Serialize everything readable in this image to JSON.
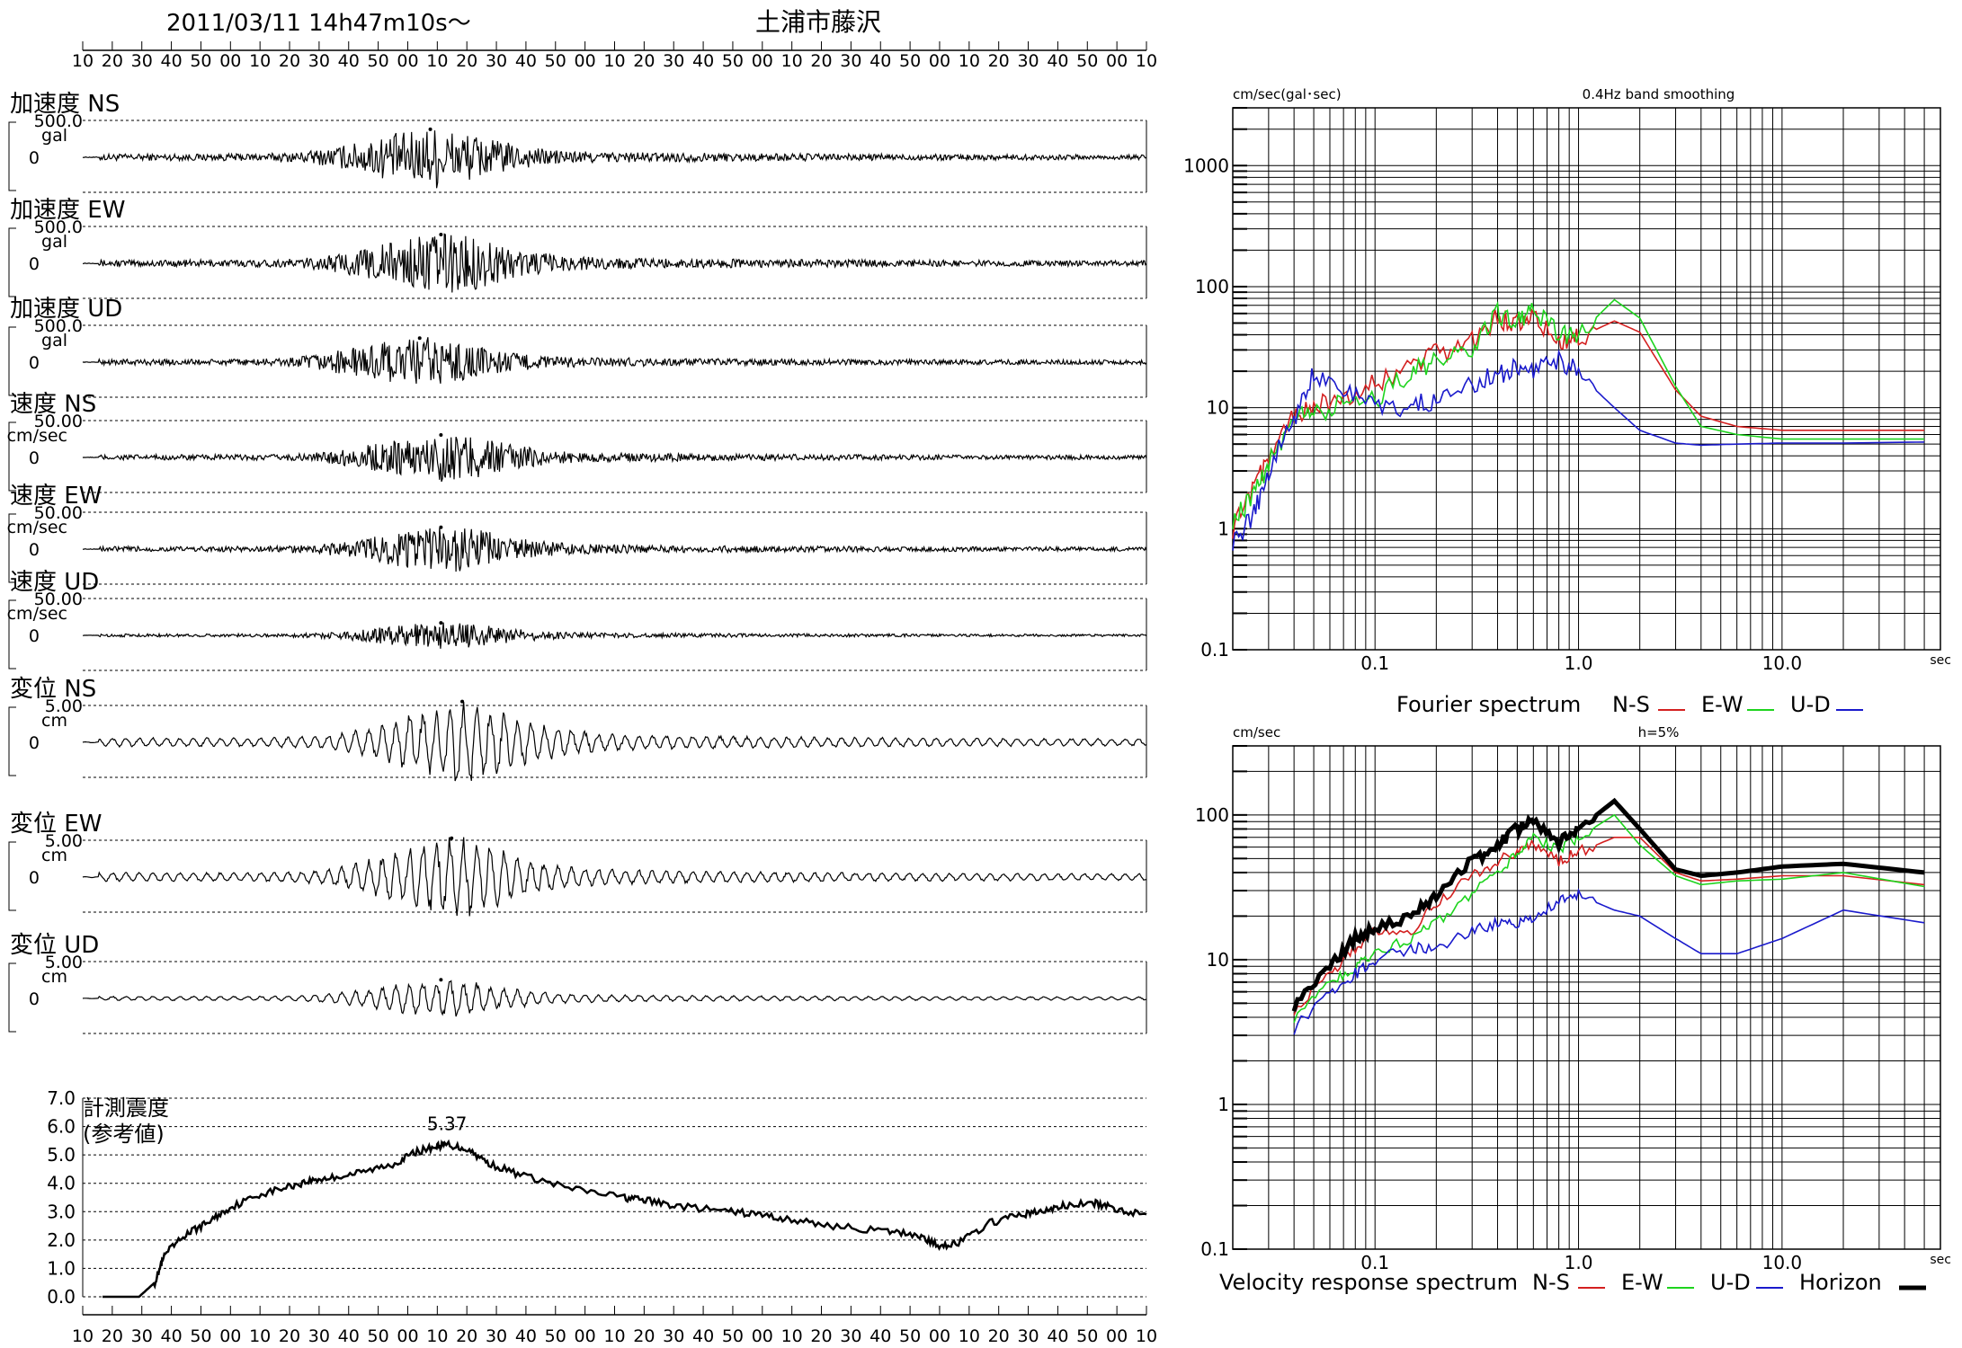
{
  "header": {
    "datetime": "2011/03/11  14h47m10s～",
    "station": "土浦市藤沢"
  },
  "time_ticks": [
    "10",
    "20",
    "30",
    "40",
    "50",
    "00",
    "10",
    "20",
    "30",
    "40",
    "50",
    "00",
    "10",
    "20",
    "30",
    "40",
    "50",
    "00",
    "10",
    "20",
    "30",
    "40",
    "50",
    "00",
    "10",
    "20",
    "30",
    "40",
    "50",
    "00",
    "10",
    "20",
    "30",
    "40",
    "50",
    "00",
    "10"
  ],
  "colors": {
    "ns": "#d42020",
    "ew": "#1ed41e",
    "ud": "#1a1acc",
    "horizon": "#000000",
    "trace": "#000000",
    "grid": "#000000"
  },
  "chart_data": [
    {
      "type": "line",
      "title": "加速度 NS",
      "unit": "gal",
      "scale_label": "500.0",
      "zero_label": "0",
      "ylim": [
        -500,
        500
      ],
      "peak_time_index": 0.32,
      "amplitude": 0.72
    },
    {
      "type": "line",
      "title": "加速度 EW",
      "unit": "gal",
      "scale_label": "500.0",
      "zero_label": "0",
      "ylim": [
        -500,
        500
      ],
      "peak_time_index": 0.33,
      "amplitude": 0.74
    },
    {
      "type": "line",
      "title": "加速度 UD",
      "unit": "gal",
      "scale_label": "500.0",
      "zero_label": "0",
      "ylim": [
        -500,
        500
      ],
      "peak_time_index": 0.31,
      "amplitude": 0.62
    },
    {
      "type": "line",
      "title": "速度 NS",
      "unit": "cm/sec",
      "scale_label": "50.00",
      "zero_label": "0",
      "ylim": [
        -50,
        50
      ],
      "peak_time_index": 0.33,
      "amplitude": 0.58
    },
    {
      "type": "line",
      "title": "速度 EW",
      "unit": "cm/sec",
      "scale_label": "50.00",
      "zero_label": "0",
      "ylim": [
        -50,
        50
      ],
      "peak_time_index": 0.33,
      "amplitude": 0.56
    },
    {
      "type": "line",
      "title": "速度 UD",
      "unit": "cm/sec",
      "scale_label": "50.00",
      "zero_label": "0",
      "ylim": [
        -50,
        50
      ],
      "peak_time_index": 0.33,
      "amplitude": 0.32
    },
    {
      "type": "line",
      "title": "変位 NS",
      "unit": "cm",
      "scale_label": "5.00",
      "zero_label": "0",
      "ylim": [
        -5,
        5
      ],
      "peak_time_index": 0.35,
      "amplitude": 1.05
    },
    {
      "type": "line",
      "title": "変位 EW",
      "unit": "cm",
      "scale_label": "5.00",
      "zero_label": "0",
      "ylim": [
        -5,
        5
      ],
      "peak_time_index": 0.34,
      "amplitude": 1.0
    },
    {
      "type": "line",
      "title": "変位 UD",
      "unit": "cm",
      "scale_label": "5.00",
      "zero_label": "0",
      "ylim": [
        -5,
        5
      ],
      "peak_time_index": 0.33,
      "amplitude": 0.48
    },
    {
      "type": "line",
      "title": "計測震度",
      "subtitle": "(参考値)",
      "peak_label": "5.37",
      "peak": 5.37,
      "ylim": [
        0,
        7
      ],
      "yticks": [
        "0.0",
        "1.0",
        "2.0",
        "3.0",
        "4.0",
        "5.0",
        "6.0",
        "7.0"
      ],
      "x": [
        0,
        0.02,
        0.035,
        0.05,
        0.06,
        0.08,
        0.1,
        0.12,
        0.15,
        0.18,
        0.2,
        0.22,
        0.25,
        0.28,
        0.3,
        0.32,
        0.33,
        0.35,
        0.37,
        0.4,
        0.45,
        0.5,
        0.52,
        0.55,
        0.6,
        0.63,
        0.66,
        0.7,
        0.75,
        0.78,
        0.8,
        0.82,
        0.85,
        0.88,
        0.9,
        0.92,
        0.95,
        0.97,
        1.0
      ],
      "values": [
        0,
        0,
        0,
        0.5,
        1.5,
        2.2,
        2.6,
        3.1,
        3.6,
        3.9,
        4.1,
        4.2,
        4.4,
        4.7,
        5.1,
        5.3,
        5.37,
        5.2,
        4.7,
        4.3,
        3.8,
        3.5,
        3.4,
        3.2,
        3.0,
        2.9,
        2.7,
        2.5,
        2.3,
        2.2,
        1.8,
        1.9,
        2.6,
        2.9,
        3.0,
        3.2,
        3.3,
        3.1,
        2.9
      ]
    },
    {
      "type": "line",
      "title": "0.4Hz band smoothing",
      "ylabel": "cm/sec(gal･sec)",
      "xunit": "sec",
      "legend_title": "Fourier spectrum",
      "legend": [
        "N-S",
        "E-W",
        "U-D"
      ],
      "xscale": "log",
      "yscale": "log",
      "xlim": [
        0.02,
        60
      ],
      "ylim": [
        0.1,
        3000
      ],
      "xticks": [
        "0.1",
        "1.0",
        "10.0"
      ],
      "yticks": [
        "0.1",
        "1",
        "10",
        "100",
        "1000"
      ],
      "series": [
        {
          "name": "N-S",
          "x": [
            0.02,
            0.025,
            0.03,
            0.04,
            0.05,
            0.07,
            0.1,
            0.15,
            0.2,
            0.3,
            0.4,
            0.5,
            0.6,
            0.8,
            1.0,
            1.5,
            2.0,
            3.0,
            4.0,
            6.0,
            10,
            20,
            50
          ],
          "values": [
            1.0,
            2.0,
            4.0,
            8.5,
            10,
            12,
            16,
            22,
            28,
            35,
            55,
            48,
            60,
            35,
            38,
            52,
            42,
            14,
            8.5,
            7,
            6.5,
            6.5,
            6.5
          ]
        },
        {
          "name": "E-W",
          "x": [
            0.02,
            0.025,
            0.03,
            0.04,
            0.05,
            0.07,
            0.1,
            0.15,
            0.2,
            0.3,
            0.4,
            0.5,
            0.6,
            0.8,
            1.0,
            1.5,
            2.0,
            3.0,
            4.0,
            6.0,
            10,
            20,
            50
          ],
          "values": [
            1.2,
            1.8,
            3.5,
            8.0,
            9,
            11,
            12,
            20,
            25,
            30,
            60,
            50,
            68,
            40,
            40,
            78,
            55,
            15,
            7,
            6,
            5.5,
            5.5,
            5.5
          ]
        },
        {
          "name": "U-D",
          "x": [
            0.02,
            0.025,
            0.03,
            0.04,
            0.05,
            0.07,
            0.1,
            0.15,
            0.2,
            0.3,
            0.4,
            0.5,
            0.6,
            0.8,
            1.0,
            1.5,
            2.0,
            3.0,
            4.0,
            6.0,
            10,
            20,
            50
          ],
          "values": [
            0.8,
            1.2,
            3.0,
            8.0,
            20,
            14,
            11,
            10,
            12,
            16,
            18,
            22,
            20,
            26,
            19,
            10,
            6.5,
            5.1,
            4.9,
            5.0,
            5.1,
            5.1,
            5.2
          ]
        }
      ]
    },
    {
      "type": "line",
      "title": "h=5%",
      "ylabel": "cm/sec",
      "xunit": "sec",
      "legend_title": "Velocity response spectrum",
      "legend": [
        "N-S",
        "E-W",
        "U-D",
        "Horizon"
      ],
      "xscale": "log",
      "yscale": "log",
      "xlim": [
        0.02,
        60
      ],
      "ylim": [
        0.1,
        300
      ],
      "xticks": [
        "0.1",
        "1.0",
        "10.0"
      ],
      "yticks": [
        "0.1",
        "1",
        "10",
        "100"
      ],
      "series": [
        {
          "name": "N-S",
          "x": [
            0.04,
            0.06,
            0.08,
            0.1,
            0.15,
            0.2,
            0.3,
            0.4,
            0.5,
            0.6,
            0.8,
            1.0,
            1.5,
            2.0,
            3.0,
            4.0,
            6.0,
            10,
            20,
            50
          ],
          "values": [
            4.5,
            8,
            12,
            16,
            15,
            25,
            38,
            48,
            55,
            62,
            48,
            55,
            70,
            70,
            40,
            35,
            36,
            38,
            38,
            33
          ]
        },
        {
          "name": "E-W",
          "x": [
            0.04,
            0.06,
            0.08,
            0.1,
            0.15,
            0.2,
            0.3,
            0.4,
            0.5,
            0.6,
            0.8,
            1.0,
            1.5,
            2.0,
            3.0,
            4.0,
            6.0,
            10,
            20,
            50
          ],
          "values": [
            4.0,
            7,
            9,
            11,
            14,
            18,
            28,
            40,
            55,
            70,
            58,
            70,
            100,
            62,
            38,
            33,
            35,
            36,
            40,
            32
          ]
        },
        {
          "name": "U-D",
          "x": [
            0.04,
            0.06,
            0.08,
            0.1,
            0.15,
            0.2,
            0.3,
            0.4,
            0.5,
            0.6,
            0.8,
            1.0,
            1.5,
            2.0,
            3.0,
            4.0,
            6.0,
            10,
            20,
            50
          ],
          "values": [
            3.3,
            6,
            8,
            10,
            12,
            12,
            16,
            18,
            18,
            20,
            25,
            28,
            22,
            20,
            14,
            11,
            11,
            14,
            22,
            18
          ]
        },
        {
          "name": "Horizon",
          "x": [
            0.04,
            0.06,
            0.08,
            0.1,
            0.15,
            0.2,
            0.3,
            0.4,
            0.5,
            0.6,
            0.8,
            1.0,
            1.5,
            2.0,
            3.0,
            4.0,
            6.0,
            10,
            20,
            50
          ],
          "values": [
            4.8,
            9,
            14,
            17,
            20,
            27,
            48,
            62,
            80,
            92,
            65,
            80,
            125,
            80,
            42,
            38,
            40,
            44,
            46,
            40
          ]
        }
      ]
    }
  ]
}
